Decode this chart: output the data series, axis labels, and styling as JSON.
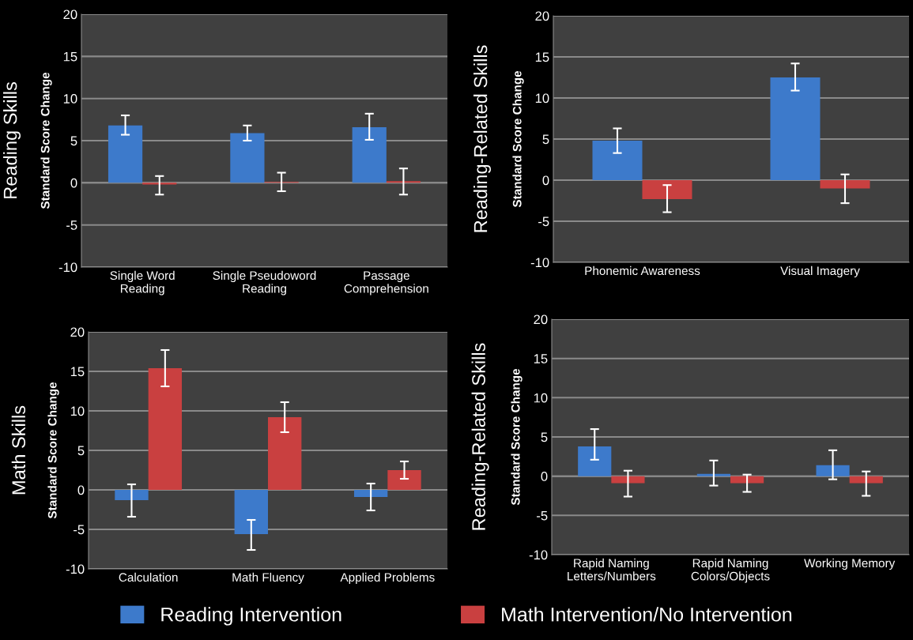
{
  "chart_data": [
    {
      "type": "bar",
      "title": "Reading Skills",
      "ylabel": "Standard Score Change",
      "categories": [
        "Single Word\nReading",
        "Single Pseudoword\nReading",
        "Passage\nComprehension"
      ],
      "ylim": [
        -10,
        20
      ],
      "yticks": [
        -10,
        -5,
        0,
        5,
        10,
        15,
        20
      ],
      "grid": "y",
      "legend": "bottom",
      "series": [
        {
          "name": "Reading Intervention",
          "color": "#3d7acb",
          "values": [
            6.8,
            5.9,
            6.6
          ],
          "errors": [
            [
              5.7,
              8.0
            ],
            [
              5.0,
              6.8
            ],
            [
              5.1,
              8.2
            ]
          ]
        },
        {
          "name": "Math Intervention/No Intervention",
          "color": "#c94040",
          "values": [
            -0.2,
            0.1,
            0.2
          ],
          "errors": [
            [
              -1.4,
              0.8
            ],
            [
              -1.0,
              1.2
            ],
            [
              -1.4,
              1.7
            ]
          ]
        }
      ]
    },
    {
      "type": "bar",
      "title": "Reading-Related Skills",
      "ylabel": "Standard Score Change",
      "categories": [
        "Phonemic Awareness",
        "Visual Imagery"
      ],
      "ylim": [
        -10,
        20
      ],
      "yticks": [
        -10,
        -5,
        0,
        5,
        10,
        15,
        20
      ],
      "grid": "y",
      "series": [
        {
          "color": "#3d7acb",
          "values": [
            4.8,
            12.5
          ],
          "errors": [
            [
              3.3,
              6.3
            ],
            [
              10.9,
              14.2
            ]
          ]
        },
        {
          "color": "#c94040",
          "values": [
            -2.3,
            -1.0
          ],
          "errors": [
            [
              -3.9,
              -0.6
            ],
            [
              -2.8,
              0.7
            ]
          ]
        }
      ]
    },
    {
      "type": "bar",
      "title": "Math Skills",
      "ylabel": "Standard Score Change",
      "categories": [
        "Calculation",
        "Math Fluency",
        "Applied Problems"
      ],
      "ylim": [
        -10,
        20
      ],
      "yticks": [
        -10,
        -5,
        0,
        5,
        10,
        15,
        20
      ],
      "grid": "y",
      "series": [
        {
          "color": "#3d7acb",
          "values": [
            -1.3,
            -5.6,
            -0.9
          ],
          "errors": [
            [
              -3.4,
              0.7
            ],
            [
              -7.6,
              -3.8
            ],
            [
              -2.6,
              0.8
            ]
          ]
        },
        {
          "color": "#c94040",
          "values": [
            15.4,
            9.2,
            2.5
          ],
          "errors": [
            [
              13.1,
              17.7
            ],
            [
              7.3,
              11.1
            ],
            [
              1.4,
              3.6
            ]
          ]
        }
      ]
    },
    {
      "type": "bar",
      "title": "Reading-Related Skills",
      "ylabel": "Standard Score Change",
      "categories": [
        "Rapid Naming\nLetters/Numbers",
        "Rapid Naming\nColors/Objects",
        "Working Memory"
      ],
      "ylim": [
        -10,
        20
      ],
      "yticks": [
        -10,
        -5,
        0,
        5,
        10,
        15,
        20
      ],
      "grid": "y",
      "series": [
        {
          "color": "#3d7acb",
          "values": [
            3.8,
            0.3,
            1.4
          ],
          "errors": [
            [
              2.1,
              6.0
            ],
            [
              -1.2,
              2.0
            ],
            [
              -0.4,
              3.3
            ]
          ]
        },
        {
          "color": "#c94040",
          "values": [
            -0.9,
            -0.9,
            -0.9
          ],
          "errors": [
            [
              -2.6,
              0.7
            ],
            [
              -2.0,
              0.2
            ],
            [
              -2.5,
              0.6
            ]
          ]
        }
      ]
    }
  ]
}
